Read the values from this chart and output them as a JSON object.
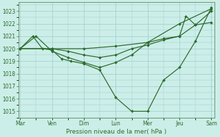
{
  "xlabel": "Pression niveau de la mer( hPa )",
  "background_color": "#cceee8",
  "grid_color": "#99cccc",
  "line_color": "#2d6b2d",
  "ylim": [
    1014.5,
    1023.7
  ],
  "xlim": [
    -0.05,
    6.1
  ],
  "x_ticks": [
    0,
    1,
    2,
    3,
    4,
    5,
    6
  ],
  "x_labels": [
    "Mar",
    "Ven",
    "Dim",
    "Lun",
    "Mer",
    "Jeu",
    "Sam"
  ],
  "y_ticks": [
    1015,
    1016,
    1017,
    1018,
    1019,
    1020,
    1021,
    1022,
    1023
  ],
  "line1_x": [
    0,
    1,
    2,
    3,
    4,
    5,
    6
  ],
  "line1_y": [
    1020.0,
    1020.0,
    1020.0,
    1020.2,
    1020.5,
    1022.0,
    1023.2
  ],
  "line2_x": [
    0,
    0.4,
    0.7,
    1.0,
    1.3,
    1.6,
    2.0,
    2.5,
    3.0,
    3.5,
    4.0,
    4.5,
    5.0,
    5.5,
    6.0
  ],
  "line2_y": [
    1020.0,
    1021.0,
    1020.0,
    1019.9,
    1019.2,
    1019.0,
    1018.8,
    1018.3,
    1016.1,
    1015.0,
    1015.0,
    1017.5,
    1018.5,
    1020.6,
    1023.3
  ],
  "line3_x": [
    0,
    1.0,
    1.5,
    2.0,
    2.5,
    3.0,
    3.5,
    4.0,
    4.5,
    5.0,
    5.5,
    6.0
  ],
  "line3_y": [
    1020.0,
    1020.0,
    1019.8,
    1019.5,
    1019.3,
    1019.5,
    1020.0,
    1020.3,
    1020.7,
    1021.0,
    1021.9,
    1023.0
  ],
  "line4_x": [
    0,
    0.5,
    1.0,
    1.5,
    2.0,
    2.5,
    3.0,
    3.5,
    4.0,
    4.5,
    5.0,
    5.2,
    5.5,
    6.0
  ],
  "line4_y": [
    1020.0,
    1021.0,
    1019.8,
    1019.3,
    1018.9,
    1018.5,
    1018.9,
    1019.5,
    1020.5,
    1020.8,
    1021.0,
    1022.6,
    1021.9,
    1022.1
  ],
  "marker": "D",
  "markersize": 2.0,
  "linewidth": 0.9,
  "tick_fontsize": 5.5,
  "xlabel_fontsize": 6.5
}
